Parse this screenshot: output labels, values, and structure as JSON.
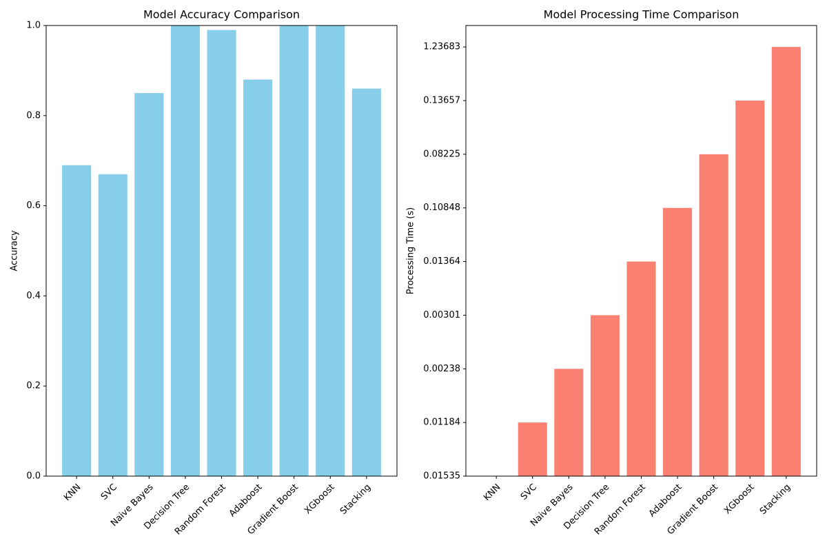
{
  "chart_data": [
    {
      "type": "bar",
      "title": "Model Accuracy Comparison",
      "y_label": "Accuracy",
      "categories": [
        "KNN",
        "SVC",
        "Naive Bayes",
        "Decision Tree",
        "Random Forest",
        "Adaboost",
        "Gradient Boost",
        "XGboost",
        "Stacking"
      ],
      "values": [
        0.69,
        0.67,
        0.85,
        1.0,
        0.99,
        0.88,
        1.0,
        1.0,
        0.86
      ],
      "color": "#87ceeb",
      "ylim": [
        0,
        1
      ],
      "yticks": [
        {
          "value": 0,
          "label": "0.0"
        },
        0.2,
        0.4,
        0.6,
        0.8,
        {
          "value": 1,
          "label": "1.0"
        }
      ]
    },
    {
      "type": "categorical-bar",
      "title": "Model Processing Time Comparison",
      "y_label": "Processing Time (s)",
      "categories": [
        "KNN",
        "SVC",
        "Naive Bayes",
        "Decision Tree",
        "Random Forest",
        "Adaboost",
        "Gradient Boost",
        "XGboost",
        "Stacking"
      ],
      "values": [
        0.01535,
        0.01184,
        0.00238,
        0.00301,
        0.01364,
        0.10848,
        0.08225,
        0.13657,
        1.23683
      ],
      "y_categories": [
        "0.01535",
        "0.01184",
        "0.00238",
        "0.00301",
        "0.01364",
        "0.10848",
        "0.08225",
        "0.13657",
        "1.23683"
      ],
      "color": "#fa8072",
      "ylim": [
        0,
        8.4
      ]
    }
  ]
}
